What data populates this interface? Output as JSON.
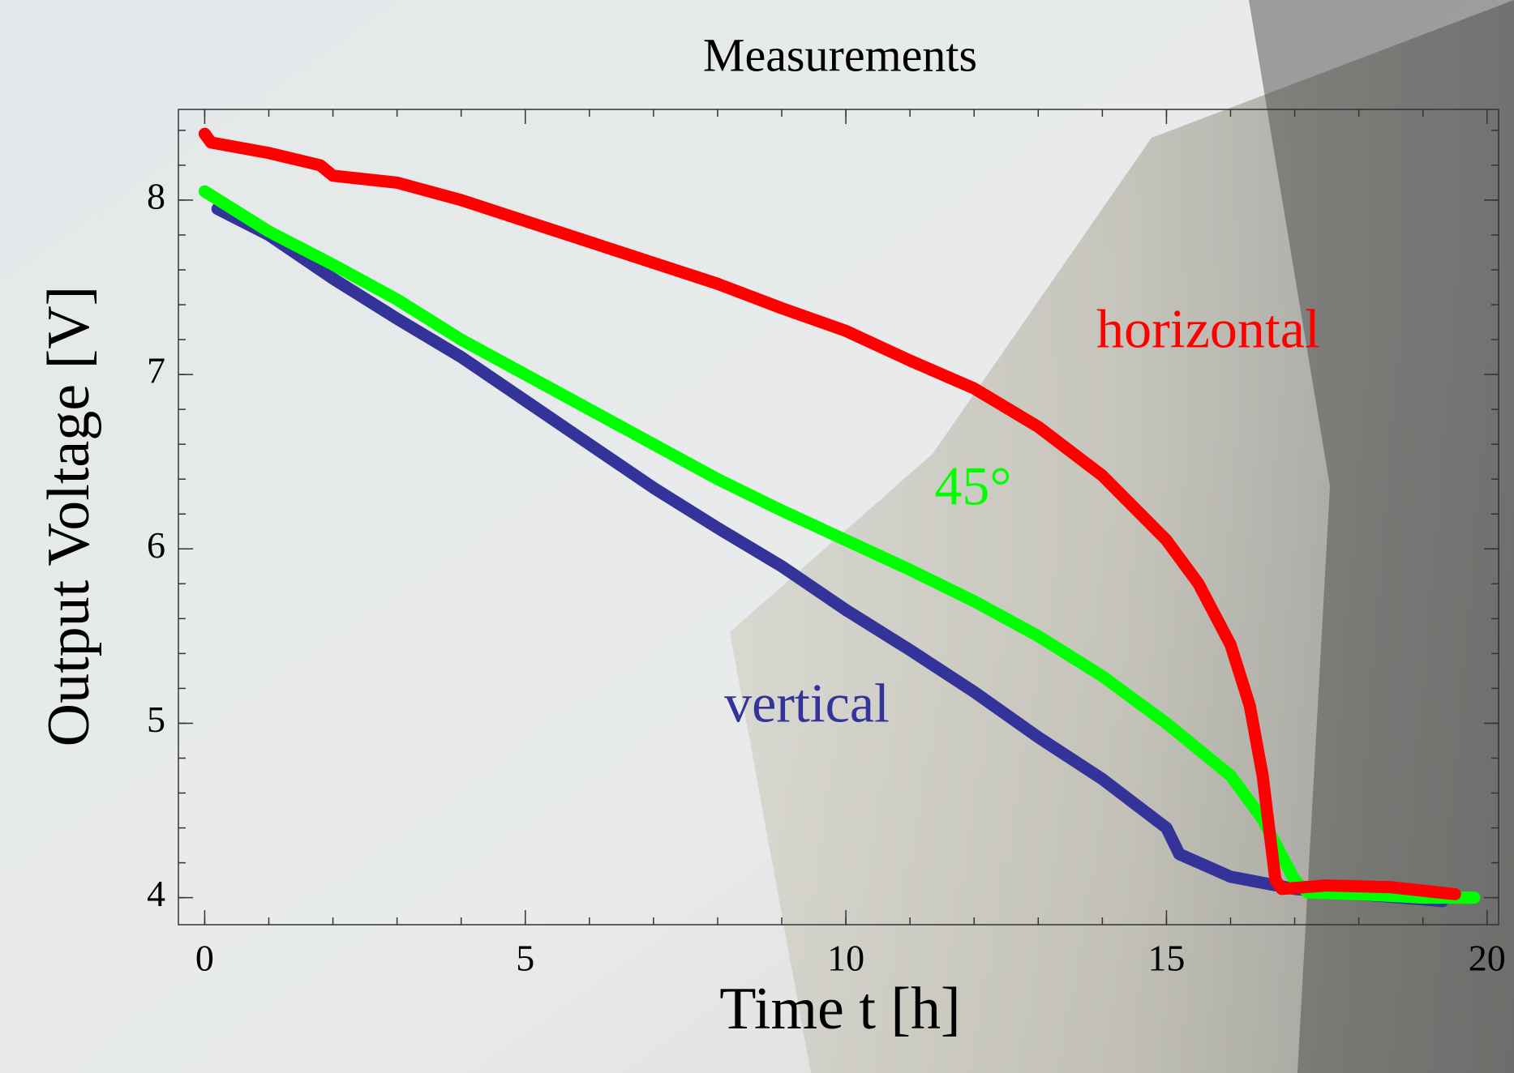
{
  "chart_data": {
    "type": "line",
    "title": "Measurements",
    "x_label": "Time t [h]",
    "y_label": "Output Voltage [V]",
    "xlim": [
      -0.41,
      20.18
    ],
    "ylim": [
      3.845,
      8.52
    ],
    "xticks": [
      0,
      5,
      10,
      15,
      20
    ],
    "yticks": [
      4,
      5,
      6,
      7,
      8
    ],
    "series": [
      {
        "name": "horizontal",
        "color": "#ff0000",
        "x": [
          0,
          0.1,
          1,
          1.8,
          2,
          3,
          4,
          5,
          6,
          7,
          8,
          9,
          10,
          11,
          12,
          13,
          14,
          15,
          15.5,
          16,
          16.3,
          16.5,
          16.6,
          16.7,
          16.8,
          17.5,
          18.5,
          19.5
        ],
        "values": [
          8.38,
          8.33,
          8.27,
          8.2,
          8.14,
          8.1,
          8.0,
          7.88,
          7.76,
          7.64,
          7.52,
          7.38,
          7.25,
          7.08,
          6.92,
          6.7,
          6.42,
          6.05,
          5.8,
          5.45,
          5.1,
          4.7,
          4.4,
          4.1,
          4.05,
          4.07,
          4.06,
          4.02
        ]
      },
      {
        "name": "45°",
        "color": "#00ff00",
        "x": [
          0,
          1,
          2,
          3,
          4,
          5,
          6,
          7,
          8,
          9,
          10,
          11,
          12,
          13,
          14,
          15,
          16,
          16.5,
          17,
          17.2,
          18,
          19,
          19.8
        ],
        "values": [
          8.05,
          7.82,
          7.63,
          7.43,
          7.2,
          7.0,
          6.8,
          6.6,
          6.4,
          6.22,
          6.05,
          5.88,
          5.7,
          5.5,
          5.27,
          5.0,
          4.7,
          4.45,
          4.1,
          4.03,
          4.02,
          4.0,
          4.0
        ]
      },
      {
        "name": "vertical",
        "color": "#333399",
        "x": [
          0.2,
          1,
          2,
          3,
          4,
          5,
          6,
          7,
          8,
          9,
          10,
          11,
          12,
          13,
          14,
          15,
          15.2,
          16,
          17,
          18,
          19,
          19.3
        ],
        "values": [
          7.95,
          7.8,
          7.55,
          7.32,
          7.1,
          6.85,
          6.6,
          6.35,
          6.12,
          5.9,
          5.65,
          5.42,
          5.18,
          4.92,
          4.68,
          4.4,
          4.25,
          4.12,
          4.05,
          4.02,
          3.99,
          3.98
        ]
      }
    ]
  }
}
